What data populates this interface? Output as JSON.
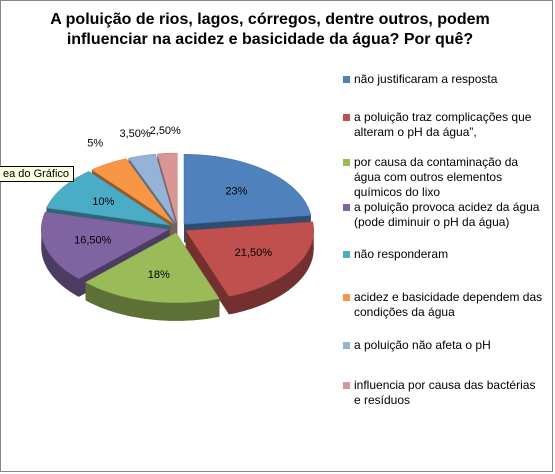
{
  "chart_data": {
    "type": "pie3d",
    "title": "A poluição de rios, lagos, córregos, dentre outros, podem influenciar na acidez e basicidade da água? Por quê?",
    "tooltip": "ea do Gráfico",
    "categories": [
      "não justificaram a resposta",
      "a poluição traz complicações que alteram o pH da água”,",
      "por causa da contaminação da água com outros elementos químicos do lixo",
      "a poluição provoca acidez da água (pode diminuir o pH da água)",
      "não responderam",
      "acidez e basicidade dependem das condições da água",
      "a poluição não afeta o pH",
      "influencia por causa das bactérias e resíduos"
    ],
    "values": [
      23,
      21.5,
      18,
      16.5,
      10,
      5,
      3.5,
      2.5
    ],
    "value_labels": [
      "23%",
      "21,50%",
      "18%",
      "16,50%",
      "10%",
      "5%",
      "3,50%",
      "2,50%"
    ],
    "colors": [
      "#4f81bd",
      "#c0504d",
      "#9bbb59",
      "#8064a2",
      "#4bacc6",
      "#f79646",
      "#95b3d7",
      "#d99694"
    ],
    "legend": "right"
  }
}
